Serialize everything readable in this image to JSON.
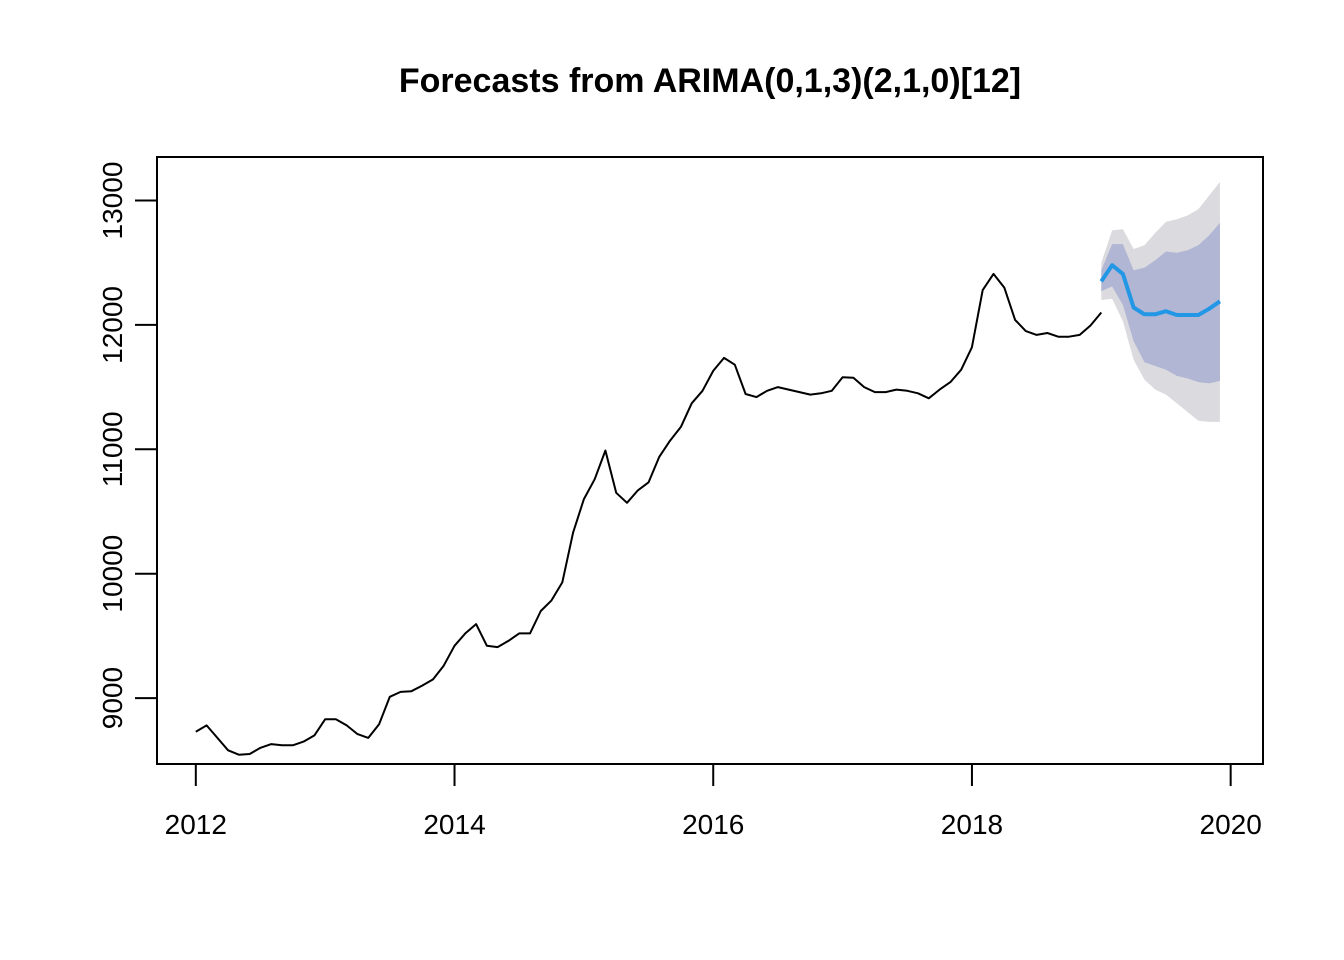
{
  "chart_data": {
    "type": "line",
    "title": "Forecasts from ARIMA(0,1,3)(2,1,0)[12]",
    "xlabel": "",
    "ylabel": "",
    "xlim": [
      2011.7,
      2020.25
    ],
    "ylim": [
      8470,
      13350
    ],
    "x_ticks": [
      2012,
      2014,
      2016,
      2018,
      2020
    ],
    "y_ticks": [
      9000,
      10000,
      11000,
      12000,
      13000
    ],
    "grid": false,
    "legend": "none",
    "colors": {
      "history": "#000000",
      "forecast": "#2297E6",
      "band_80": "#B0B6D3",
      "band_95": "#DBDBDF"
    },
    "history": {
      "start": 2012,
      "frequency": 12,
      "values": [
        8730,
        8780,
        8680,
        8580,
        8545,
        8550,
        8600,
        8630,
        8620,
        8620,
        8650,
        8700,
        8830,
        8830,
        8780,
        8710,
        8680,
        8790,
        9010,
        9050,
        9055,
        9100,
        9150,
        9260,
        9420,
        9520,
        9595,
        9420,
        9410,
        9460,
        9520,
        9520,
        9700,
        9785,
        9930,
        10330,
        10600,
        10760,
        10990,
        10650,
        10570,
        10670,
        10735,
        10940,
        11070,
        11180,
        11370,
        11470,
        11630,
        11735,
        11680,
        11445,
        11420,
        11470,
        11500,
        11480,
        11460,
        11440,
        11450,
        11470,
        11580,
        11575,
        11500,
        11460,
        11460,
        11480,
        11470,
        11450,
        11410,
        11480,
        11540,
        11640,
        11820,
        12280,
        12410,
        12300,
        12040,
        11950,
        11920,
        11935,
        11905,
        11905,
        11920,
        11995,
        12100
      ]
    },
    "forecast": {
      "start": 2019,
      "frequency": 12,
      "mean": [
        12350,
        12480,
        12410,
        12140,
        12085,
        12085,
        12110,
        12080,
        12080,
        12080,
        12130,
        12190
      ],
      "lo80": [
        12270,
        12310,
        12160,
        11870,
        11700,
        11670,
        11640,
        11590,
        11570,
        11540,
        11530,
        11550
      ],
      "hi80": [
        12440,
        12650,
        12650,
        12440,
        12460,
        12520,
        12590,
        12580,
        12600,
        12640,
        12720,
        12820
      ],
      "lo95": [
        12200,
        12210,
        12030,
        11720,
        11560,
        11480,
        11440,
        11370,
        11300,
        11230,
        11220,
        11220
      ],
      "hi95": [
        12500,
        12760,
        12770,
        12610,
        12640,
        12740,
        12830,
        12850,
        12880,
        12930,
        13040,
        13150
      ]
    }
  }
}
